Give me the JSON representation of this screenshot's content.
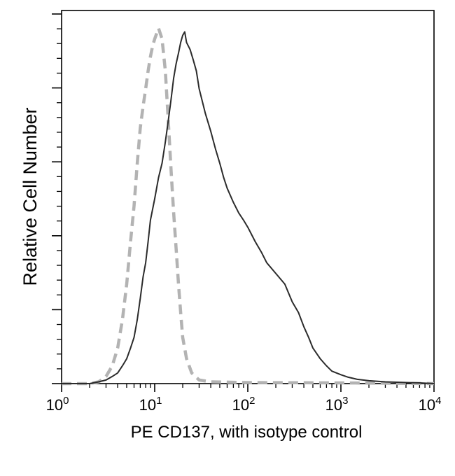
{
  "chart_data": {
    "type": "line",
    "title": "",
    "xlabel": "PE CD137, with isotype control",
    "ylabel": "Relative Cell Number",
    "x_scale": "log10",
    "xlim": [
      1,
      10000
    ],
    "ylim": [
      0,
      1.05
    ],
    "y_tick_labels": false,
    "grid": false,
    "x_ticks": [
      {
        "base": "10",
        "exp": "0",
        "value": 1
      },
      {
        "base": "10",
        "exp": "1",
        "value": 10
      },
      {
        "base": "10",
        "exp": "2",
        "value": 100
      },
      {
        "base": "10",
        "exp": "3",
        "value": 1000
      },
      {
        "base": "10",
        "exp": "4",
        "value": 10000
      }
    ],
    "series": [
      {
        "name": "PE CD137",
        "style": "solid",
        "color": "#2b2b2b",
        "points": [
          [
            1.0,
            0.0
          ],
          [
            2.0,
            0.0
          ],
          [
            2.5,
            0.005
          ],
          [
            3.0,
            0.01
          ],
          [
            3.5,
            0.02
          ],
          [
            4.0,
            0.03
          ],
          [
            4.5,
            0.05
          ],
          [
            5.0,
            0.07
          ],
          [
            5.5,
            0.1
          ],
          [
            6.0,
            0.13
          ],
          [
            6.5,
            0.18
          ],
          [
            7.0,
            0.24
          ],
          [
            7.5,
            0.3
          ],
          [
            8.0,
            0.34
          ],
          [
            8.5,
            0.4
          ],
          [
            9.0,
            0.46
          ],
          [
            10.0,
            0.52
          ],
          [
            11.0,
            0.58
          ],
          [
            12.0,
            0.62
          ],
          [
            13.0,
            0.68
          ],
          [
            14.0,
            0.74
          ],
          [
            15.0,
            0.8
          ],
          [
            16.0,
            0.86
          ],
          [
            17.0,
            0.9
          ],
          [
            18.0,
            0.93
          ],
          [
            19.0,
            0.96
          ],
          [
            20.0,
            0.98
          ],
          [
            21.0,
            0.99
          ],
          [
            22.0,
            0.96
          ],
          [
            24.0,
            0.94
          ],
          [
            26.0,
            0.91
          ],
          [
            28.0,
            0.88
          ],
          [
            30.0,
            0.83
          ],
          [
            35.0,
            0.76
          ],
          [
            40.0,
            0.71
          ],
          [
            45.0,
            0.66
          ],
          [
            50.0,
            0.62
          ],
          [
            55.0,
            0.58
          ],
          [
            60.0,
            0.55
          ],
          [
            70.0,
            0.51
          ],
          [
            80.0,
            0.48
          ],
          [
            90.0,
            0.46
          ],
          [
            100.0,
            0.44
          ],
          [
            120.0,
            0.4
          ],
          [
            140.0,
            0.37
          ],
          [
            160.0,
            0.34
          ],
          [
            200.0,
            0.31
          ],
          [
            250.0,
            0.28
          ],
          [
            300.0,
            0.23
          ],
          [
            350.0,
            0.2
          ],
          [
            400.0,
            0.16
          ],
          [
            450.0,
            0.13
          ],
          [
            500.0,
            0.1
          ],
          [
            600.0,
            0.07
          ],
          [
            700.0,
            0.05
          ],
          [
            800.0,
            0.035
          ],
          [
            1000.0,
            0.025
          ],
          [
            1200.0,
            0.018
          ],
          [
            1500.0,
            0.012
          ],
          [
            2000.0,
            0.008
          ],
          [
            3000.0,
            0.005
          ],
          [
            5000.0,
            0.003
          ],
          [
            7000.0,
            0.002
          ],
          [
            10000.0,
            0.0
          ]
        ]
      },
      {
        "name": "Isotype control",
        "style": "dashed",
        "color": "#b3b3b3",
        "points": [
          [
            1.0,
            0.0
          ],
          [
            2.0,
            0.0
          ],
          [
            2.5,
            0.005
          ],
          [
            3.0,
            0.02
          ],
          [
            3.5,
            0.05
          ],
          [
            4.0,
            0.1
          ],
          [
            4.5,
            0.18
          ],
          [
            5.0,
            0.28
          ],
          [
            5.5,
            0.4
          ],
          [
            6.0,
            0.5
          ],
          [
            6.5,
            0.62
          ],
          [
            7.0,
            0.72
          ],
          [
            7.5,
            0.78
          ],
          [
            8.0,
            0.83
          ],
          [
            8.5,
            0.88
          ],
          [
            9.0,
            0.92
          ],
          [
            9.5,
            0.95
          ],
          [
            10.0,
            0.97
          ],
          [
            11.0,
            1.0
          ],
          [
            12.0,
            0.97
          ],
          [
            13.0,
            0.88
          ],
          [
            14.0,
            0.74
          ],
          [
            15.0,
            0.6
          ],
          [
            16.0,
            0.48
          ],
          [
            17.0,
            0.38
          ],
          [
            18.0,
            0.28
          ],
          [
            19.0,
            0.2
          ],
          [
            20.0,
            0.13
          ],
          [
            22.0,
            0.07
          ],
          [
            25.0,
            0.03
          ],
          [
            30.0,
            0.01
          ],
          [
            40.0,
            0.005
          ],
          [
            100.0,
            0.003
          ],
          [
            1000.0,
            0.002
          ],
          [
            10000.0,
            0.0
          ]
        ]
      }
    ]
  }
}
